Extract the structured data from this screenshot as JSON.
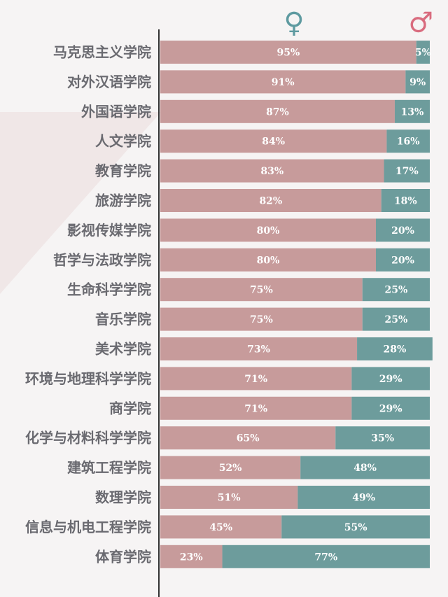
{
  "colors": {
    "female": "#c79b9b",
    "male": "#6d9c9c",
    "female_symbol": "#5e9aa0",
    "male_symbol": "#d96b7e",
    "label": "#6a6a70",
    "axis": "#333333"
  },
  "legend": {
    "female_icon": "female-symbol-icon",
    "male_icon": "male-symbol-icon",
    "female_symbol": "♀",
    "male_symbol": "♂",
    "placement": "top-right"
  },
  "chart_data": {
    "type": "bar",
    "orientation": "horizontal",
    "stacked": true,
    "percent": true,
    "xlim": [
      0,
      100
    ],
    "categories": [
      "马克思主义学院",
      "对外汉语学院",
      "外国语学院",
      "人文学院",
      "教育学院",
      "旅游学院",
      "影视传媒学院",
      "哲学与法政学院",
      "生命科学学院",
      "音乐学院",
      "美术学院",
      "环境与地理科学学院",
      "商学院",
      "化学与材料科学学院",
      "建筑工程学院",
      "数理学院",
      "信息与机电工程学院",
      "体育学院"
    ],
    "series": [
      {
        "key": "female",
        "values": [
          95,
          91,
          87,
          84,
          83,
          82,
          80,
          80,
          75,
          75,
          73,
          71,
          71,
          65,
          52,
          51,
          45,
          23
        ],
        "labels": [
          "95%",
          "91%",
          "87%",
          "84%",
          "83%",
          "82%",
          "80%",
          "80%",
          "75%",
          "75%",
          "73%",
          "71%",
          "71%",
          "65%",
          "52%",
          "51%",
          "45%",
          "23%"
        ]
      },
      {
        "key": "male",
        "values": [
          5,
          9,
          13,
          16,
          17,
          18,
          20,
          20,
          25,
          25,
          28,
          29,
          29,
          35,
          48,
          49,
          55,
          77
        ],
        "labels": [
          "5%",
          "9%",
          "13%",
          "16%",
          "17%",
          "18%",
          "20%",
          "20%",
          "25%",
          "25%",
          "28%",
          "29%",
          "29%",
          "35%",
          "48%",
          "49%",
          "55%",
          "77%"
        ]
      }
    ],
    "title": "",
    "xlabel": "",
    "ylabel": "",
    "grid": false
  }
}
